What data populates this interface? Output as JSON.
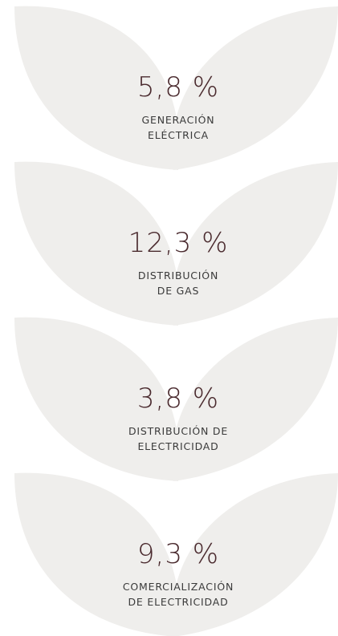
{
  "items": [
    {
      "value": "5,8 %",
      "label_lines": [
        "GENERACIÓN",
        "ELÉCTRICA"
      ]
    },
    {
      "value": "12,3 %",
      "label_lines": [
        "DISTRIBUCIÓN",
        "DE GAS"
      ]
    },
    {
      "value": "3,8 %",
      "label_lines": [
        "DISTRIBUCIÓN DE",
        "ELECTRICIDAD"
      ]
    },
    {
      "value": "9,3 %",
      "label_lines": [
        "COMERCIALIZACIÓN",
        "DE ELECTRICIDAD"
      ]
    }
  ]
}
